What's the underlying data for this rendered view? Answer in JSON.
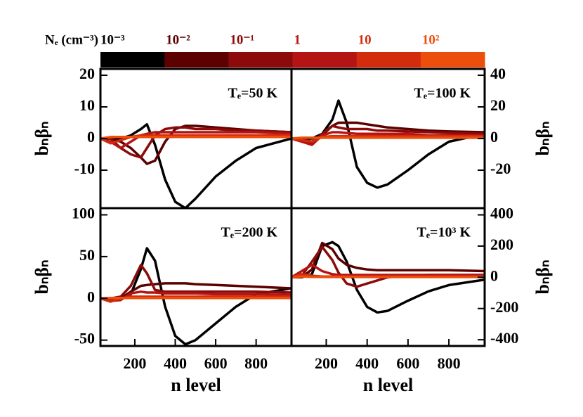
{
  "chart_data": [
    {
      "type": "line",
      "title": "Tₑ=50 K",
      "ylabel": "bₙβₙ",
      "legend_title": "Nₑ (cm⁻³)",
      "x": [
        30,
        80,
        130,
        180,
        230,
        260,
        300,
        350,
        400,
        450,
        500,
        600,
        700,
        800,
        975
      ],
      "xlim": [
        30,
        975
      ],
      "ylim": [
        -22,
        22
      ],
      "yticks": [
        20,
        10,
        0,
        -10
      ],
      "series": [
        {
          "name": "10⁻³",
          "color": "#000000",
          "values": [
            0,
            0,
            0,
            1,
            3,
            4.5,
            -2,
            -13,
            -20,
            -22,
            -19,
            -12,
            -7,
            -3,
            0
          ]
        },
        {
          "name": "10⁻²",
          "color": "#5c0000",
          "values": [
            0,
            0,
            -1,
            -3,
            -6,
            -8,
            -7,
            -1,
            3,
            4,
            4,
            3.5,
            3,
            2.5,
            2
          ]
        },
        {
          "name": "10⁻¹",
          "color": "#8c0a0a",
          "values": [
            0,
            0,
            -3,
            -5,
            -6,
            -3,
            1,
            3,
            3.5,
            3.5,
            3,
            3,
            2.5,
            2.5,
            2
          ]
        },
        {
          "name": "1",
          "color": "#b41414",
          "values": [
            0,
            -1,
            -3,
            -1,
            1,
            1.5,
            2,
            2,
            2,
            2,
            2,
            2,
            2,
            2,
            1.5
          ]
        },
        {
          "name": "10",
          "color": "#d22c0c",
          "values": [
            0,
            -1.5,
            -0.5,
            0.5,
            1,
            1,
            1,
            1,
            1,
            1,
            1,
            1,
            1,
            1,
            1
          ]
        },
        {
          "name": "10²",
          "color": "#ec4e0c",
          "values": [
            0,
            0.5,
            0.5,
            0.5,
            0.5,
            0.5,
            0.5,
            0.5,
            0.5,
            0.5,
            0.5,
            0.5,
            0.5,
            0.5,
            0.5
          ]
        }
      ]
    },
    {
      "type": "line",
      "title": "Tₑ=100 K",
      "ylabel": "bₙβₙ",
      "x": [
        30,
        80,
        130,
        180,
        230,
        260,
        300,
        350,
        400,
        450,
        500,
        600,
        700,
        800,
        975
      ],
      "xlim": [
        30,
        975
      ],
      "ylim": [
        -44,
        44
      ],
      "yticks": [
        40,
        20,
        0,
        -20
      ],
      "series": [
        {
          "name": "10⁻³",
          "color": "#000000",
          "values": [
            0,
            0,
            0,
            3,
            12,
            24,
            10,
            -18,
            -28,
            -31,
            -29,
            -20,
            -10,
            -2,
            3
          ]
        },
        {
          "name": "10⁻²",
          "color": "#5c0000",
          "values": [
            0,
            0,
            -2,
            2,
            8,
            10,
            10,
            10,
            9,
            8,
            7,
            6,
            5,
            4.5,
            4
          ]
        },
        {
          "name": "10⁻¹",
          "color": "#8c0a0a",
          "values": [
            0,
            -1,
            -3,
            3,
            8,
            7,
            6,
            6,
            6,
            5,
            5,
            4.5,
            4,
            3.5,
            3
          ]
        },
        {
          "name": "1",
          "color": "#b41414",
          "values": [
            0,
            -2,
            -4,
            2,
            4,
            4,
            3.5,
            3,
            3,
            3,
            3,
            3,
            2,
            2,
            2
          ]
        },
        {
          "name": "10",
          "color": "#d22c0c",
          "values": [
            0,
            -1,
            -2,
            1,
            1.5,
            1.5,
            1.5,
            1.5,
            1.5,
            1.5,
            1.5,
            1.5,
            1.5,
            1.5,
            1.5
          ]
        },
        {
          "name": "10²",
          "color": "#ec4e0c",
          "values": [
            0,
            0.5,
            0.5,
            0.5,
            0.5,
            0.5,
            0.5,
            0.5,
            0.5,
            0.5,
            0.5,
            0.5,
            0.5,
            0.5,
            0.5
          ]
        }
      ]
    },
    {
      "type": "line",
      "title": "Tₑ=200 K",
      "ylabel": "bₙβₙ",
      "xlabel": "n level",
      "x": [
        30,
        80,
        130,
        180,
        230,
        260,
        300,
        350,
        400,
        450,
        500,
        600,
        700,
        800,
        975
      ],
      "xlim": [
        30,
        975
      ],
      "ylim": [
        -57,
        108
      ],
      "yticks": [
        100,
        50,
        0,
        -50
      ],
      "xticks": [
        200,
        400,
        600,
        800
      ],
      "series": [
        {
          "name": "10⁻³",
          "color": "#000000",
          "values": [
            0,
            0,
            0,
            5,
            35,
            60,
            45,
            -10,
            -45,
            -55,
            -50,
            -30,
            -10,
            5,
            12
          ]
        },
        {
          "name": "10⁻²",
          "color": "#5c0000",
          "values": [
            0,
            0,
            0,
            8,
            15,
            16,
            17,
            18,
            18,
            18,
            17,
            16,
            15,
            14,
            12
          ]
        },
        {
          "name": "10⁻¹",
          "color": "#8c0a0a",
          "values": [
            0,
            0,
            2,
            15,
            40,
            30,
            10,
            8,
            8,
            8,
            8,
            8,
            8,
            8,
            7
          ]
        },
        {
          "name": "1",
          "color": "#b41414",
          "values": [
            0,
            -3,
            -2,
            6,
            8,
            7,
            7,
            6,
            6,
            6,
            6,
            5,
            5,
            5,
            4
          ]
        },
        {
          "name": "10",
          "color": "#d22c0c",
          "values": [
            0,
            -4,
            0,
            2,
            2,
            2,
            2,
            2,
            2,
            2,
            2,
            2,
            2,
            2,
            2
          ]
        },
        {
          "name": "10²",
          "color": "#ec4e0c",
          "values": [
            0,
            0.5,
            0.5,
            0.5,
            0.5,
            0.5,
            0.5,
            0.5,
            0.5,
            0.5,
            0.5,
            0.5,
            0.5,
            0.5,
            0.5
          ]
        }
      ]
    },
    {
      "type": "line",
      "title": "Tₑ=10³ K",
      "ylabel": "bₙβₙ",
      "xlabel": "n level",
      "x": [
        30,
        80,
        130,
        180,
        230,
        260,
        300,
        350,
        400,
        450,
        500,
        600,
        700,
        800,
        975
      ],
      "xlim": [
        30,
        975
      ],
      "ylim": [
        -440,
        443
      ],
      "yticks": [
        400,
        200,
        0,
        -200,
        -400
      ],
      "xticks": [
        200,
        400,
        600,
        800
      ],
      "series": [
        {
          "name": "10⁻³",
          "color": "#000000",
          "values": [
            0,
            0,
            20,
            200,
            225,
            200,
            100,
            -80,
            -190,
            -225,
            -215,
            -150,
            -90,
            -50,
            -15
          ]
        },
        {
          "name": "10⁻²",
          "color": "#5c0000",
          "values": [
            0,
            0,
            50,
            220,
            180,
            120,
            80,
            60,
            50,
            45,
            45,
            45,
            45,
            45,
            40
          ]
        },
        {
          "name": "10⁻¹",
          "color": "#8c0a0a",
          "values": [
            0,
            10,
            100,
            195,
            110,
            30,
            -40,
            -60,
            -40,
            -20,
            0,
            10,
            15,
            15,
            15
          ]
        },
        {
          "name": "1",
          "color": "#b41414",
          "values": [
            0,
            40,
            80,
            40,
            20,
            15,
            15,
            15,
            15,
            15,
            15,
            15,
            15,
            15,
            15
          ]
        },
        {
          "name": "10",
          "color": "#d22c0c",
          "values": [
            0,
            20,
            10,
            5,
            5,
            5,
            5,
            5,
            5,
            5,
            5,
            5,
            5,
            5,
            5
          ]
        },
        {
          "name": "10²",
          "color": "#ec4e0c",
          "values": [
            0,
            5,
            3,
            2,
            2,
            2,
            2,
            2,
            2,
            2,
            2,
            2,
            2,
            2,
            2
          ]
        }
      ]
    }
  ]
}
